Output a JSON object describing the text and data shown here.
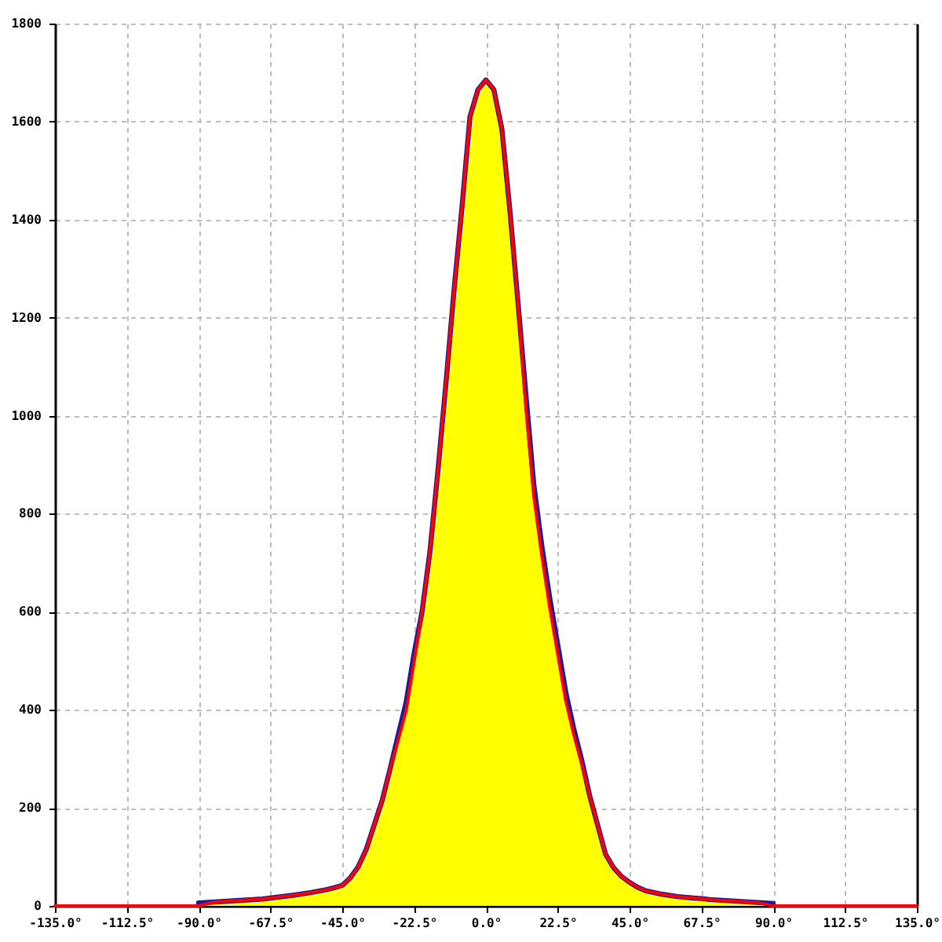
{
  "chart_data": {
    "type": "line",
    "xlim": [
      -135,
      135
    ],
    "ylim": [
      0,
      1800
    ],
    "xticks": [
      {
        "value": -135,
        "label": "-135.0°"
      },
      {
        "value": -112.5,
        "label": "-112.5°"
      },
      {
        "value": -90,
        "label": "-90.0°"
      },
      {
        "value": -67.5,
        "label": "-67.5°"
      },
      {
        "value": -45,
        "label": "-45.0°"
      },
      {
        "value": -22.5,
        "label": "-22.5°"
      },
      {
        "value": 0,
        "label": "0.0°"
      },
      {
        "value": 22.5,
        "label": "22.5°"
      },
      {
        "value": 45,
        "label": "45.0°"
      },
      {
        "value": 67.5,
        "label": "67.5°"
      },
      {
        "value": 90,
        "label": "90.0°"
      },
      {
        "value": 112.5,
        "label": "112.5°"
      },
      {
        "value": 135,
        "label": "135.0°"
      }
    ],
    "yticks": [
      0,
      200,
      400,
      600,
      800,
      1000,
      1200,
      1400,
      1600,
      1800
    ],
    "grid": true,
    "series": [
      {
        "type": "area",
        "color": "#ffff00",
        "x": [
          -90,
          -85,
          -80,
          -75,
          -70,
          -67.5,
          -65,
          -60,
          -55,
          -50,
          -47.5,
          -45,
          -42.5,
          -40,
          -37.5,
          -35,
          -32.5,
          -30,
          -27.5,
          -25,
          -22.5,
          -20,
          -17.5,
          -15,
          -12.5,
          -10,
          -7.5,
          -5,
          -2.5,
          0,
          2.5,
          5,
          7.5,
          10,
          12.5,
          15,
          17.5,
          20,
          22.5,
          25,
          27.5,
          30,
          32.5,
          35,
          37.5,
          40,
          42.5,
          45,
          47.5,
          50,
          55,
          60,
          65,
          67.5,
          70,
          75,
          80,
          85,
          90
        ],
        "values": [
          6,
          8,
          10,
          12,
          14,
          16,
          18,
          22,
          27,
          33,
          37,
          42,
          57,
          80,
          115,
          165,
          215,
          280,
          348,
          415,
          515,
          600,
          725,
          890,
          1068,
          1255,
          1425,
          1610,
          1665,
          1685,
          1665,
          1585,
          1420,
          1235,
          1045,
          860,
          735,
          628,
          533,
          437,
          362,
          298,
          225,
          165,
          105,
          78,
          60,
          48,
          38,
          31,
          24,
          19,
          16,
          15,
          13,
          11,
          9,
          7,
          5
        ]
      },
      {
        "color": "#1a1aa0",
        "x": [
          -90,
          -85,
          -80,
          -75,
          -70,
          -67.5,
          -65,
          -60,
          -55,
          -50,
          -47.5,
          -45,
          -42.5,
          -40,
          -37.5,
          -35,
          -32.5,
          -30,
          -27.5,
          -25,
          -22.5,
          -20,
          -17.5,
          -15,
          -12.5,
          -10,
          -7.5,
          -5,
          -2.5,
          0,
          2.5,
          5,
          7.5,
          10,
          12.5,
          15,
          17.5,
          20,
          22.5,
          25,
          27.5,
          30,
          32.5,
          35,
          37.5,
          40,
          42.5,
          45,
          47.5,
          50,
          55,
          60,
          65,
          67.5,
          70,
          75,
          80,
          85,
          90
        ],
        "values": [
          6,
          8,
          10,
          12,
          14,
          16,
          18,
          22,
          27,
          33,
          37,
          42,
          57,
          80,
          115,
          165,
          215,
          280,
          348,
          415,
          515,
          600,
          725,
          890,
          1068,
          1255,
          1425,
          1610,
          1665,
          1685,
          1665,
          1585,
          1420,
          1235,
          1045,
          860,
          735,
          628,
          533,
          437,
          362,
          298,
          225,
          165,
          105,
          78,
          60,
          48,
          38,
          31,
          24,
          19,
          16,
          15,
          13,
          11,
          9,
          7,
          5
        ]
      },
      {
        "color": "#ff0000",
        "x": [
          -135,
          -90,
          -85,
          -80,
          -75,
          -70,
          -67.5,
          -65,
          -60,
          -55,
          -50,
          -47.5,
          -45,
          -42.5,
          -40,
          -37.5,
          -35,
          -32.5,
          -30,
          -27.5,
          -25,
          -22.5,
          -20,
          -17.5,
          -15,
          -12.5,
          -10,
          -7.5,
          -5,
          -2.5,
          0,
          2.5,
          5,
          7.5,
          10,
          12.5,
          15,
          17.5,
          20,
          22.5,
          25,
          27.5,
          30,
          32.5,
          35,
          37.5,
          40,
          42.5,
          45,
          47.5,
          50,
          55,
          60,
          65,
          67.5,
          70,
          75,
          80,
          85,
          90,
          135
        ],
        "values": [
          0,
          0,
          8,
          10,
          12,
          14,
          16,
          18,
          22,
          27,
          33,
          37,
          42,
          57,
          80,
          115,
          165,
          215,
          280,
          338,
          398,
          498,
          600,
          725,
          890,
          1068,
          1255,
          1425,
          1610,
          1665,
          1685,
          1665,
          1585,
          1420,
          1235,
          1020,
          836,
          715,
          608,
          513,
          419,
          350,
          290,
          225,
          165,
          105,
          78,
          60,
          48,
          38,
          31,
          24,
          19,
          16,
          15,
          13,
          11,
          9,
          7,
          0,
          0
        ]
      }
    ]
  }
}
